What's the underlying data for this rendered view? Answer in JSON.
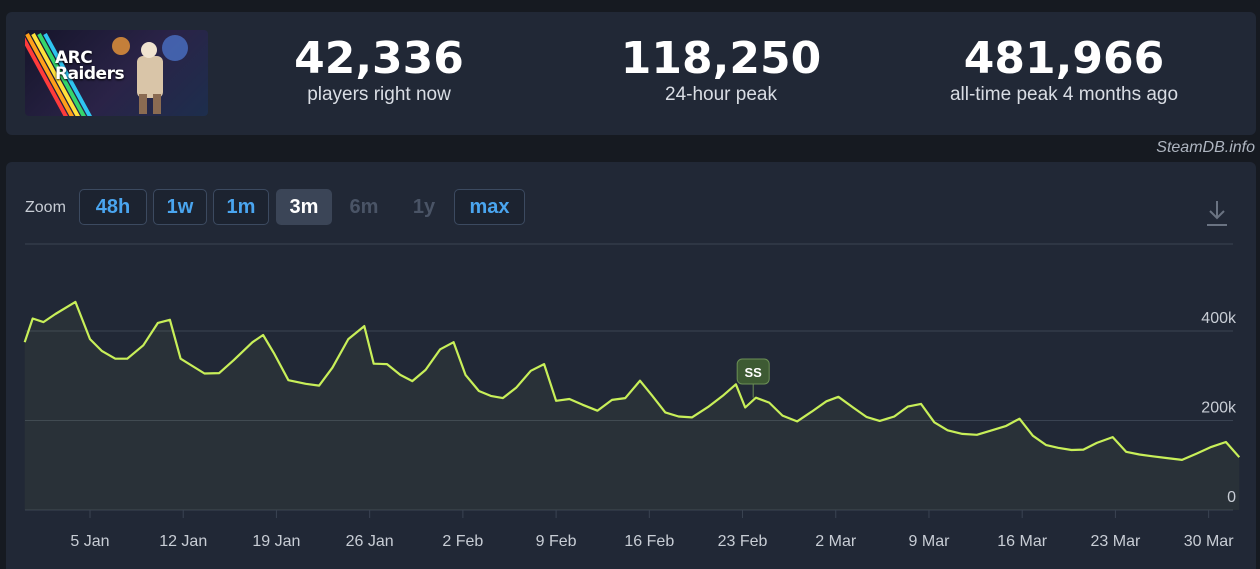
{
  "header": {
    "game_logo": "ARC\nRaiders",
    "stats": [
      {
        "value": "42,336",
        "label": "players right now"
      },
      {
        "value": "118,250",
        "label": "24-hour peak"
      },
      {
        "value": "481,966",
        "label": "all-time peak 4 months ago"
      }
    ],
    "credit": "SteamDB.info"
  },
  "zoom": {
    "label": "Zoom",
    "options": [
      {
        "label": "48h",
        "state": "enabled"
      },
      {
        "label": "1w",
        "state": "enabled"
      },
      {
        "label": "1m",
        "state": "enabled"
      },
      {
        "label": "3m",
        "state": "active"
      },
      {
        "label": "6m",
        "state": "disabled"
      },
      {
        "label": "1y",
        "state": "disabled"
      },
      {
        "label": "max",
        "state": "enabled"
      }
    ]
  },
  "icons": {
    "download": "download-icon"
  },
  "colors": {
    "line": "#c8ef59",
    "grid": "#3a4352",
    "axis_text": "#c8cdd5",
    "annotation_bg": "#3d5a33",
    "annotation_border": "#6b8f55"
  },
  "chart_data": {
    "type": "line",
    "title": "",
    "xlabel": "",
    "ylabel": "",
    "x_ticks": [
      "5 Jan",
      "12 Jan",
      "19 Jan",
      "26 Jan",
      "2 Feb",
      "9 Feb",
      "16 Feb",
      "23 Feb",
      "2 Mar",
      "9 Mar",
      "16 Mar",
      "23 Mar",
      "30 Mar"
    ],
    "x_tick_offsets_days": [
      0,
      7,
      14,
      21,
      28,
      35,
      42,
      49,
      56,
      63,
      70,
      77,
      84
    ],
    "y_ticks": [
      "0",
      "200k",
      "400k"
    ],
    "y_tick_values": [
      0,
      200000,
      400000
    ],
    "ylim": [
      0,
      600000
    ],
    "grid": true,
    "series": [
      {
        "points": [
          [
            -4.9,
            375000
          ],
          [
            -4.3,
            428000
          ],
          [
            -3.5,
            420000
          ],
          [
            -2.6,
            438000
          ],
          [
            -1.1,
            465000
          ],
          [
            0.0,
            382000
          ],
          [
            0.9,
            355000
          ],
          [
            1.9,
            338000
          ],
          [
            2.8,
            338000
          ],
          [
            4.0,
            368000
          ],
          [
            5.1,
            418000
          ],
          [
            6.0,
            425000
          ],
          [
            6.8,
            338000
          ],
          [
            8.6,
            305000
          ],
          [
            9.7,
            306000
          ],
          [
            10.8,
            335000
          ],
          [
            12.2,
            375000
          ],
          [
            13.0,
            391000
          ],
          [
            13.8,
            351000
          ],
          [
            14.9,
            290000
          ],
          [
            16.2,
            282000
          ],
          [
            17.2,
            278000
          ],
          [
            18.2,
            318000
          ],
          [
            19.4,
            382000
          ],
          [
            20.6,
            411000
          ],
          [
            21.3,
            327000
          ],
          [
            22.3,
            326000
          ],
          [
            23.3,
            302000
          ],
          [
            24.2,
            288000
          ],
          [
            25.2,
            313000
          ],
          [
            26.3,
            359000
          ],
          [
            27.3,
            375000
          ],
          [
            28.2,
            302000
          ],
          [
            29.2,
            266000
          ],
          [
            30.1,
            255000
          ],
          [
            31.0,
            250000
          ],
          [
            32.0,
            273000
          ],
          [
            33.1,
            311000
          ],
          [
            34.1,
            326000
          ],
          [
            35.0,
            244000
          ],
          [
            36.0,
            248000
          ],
          [
            37.0,
            235000
          ],
          [
            38.1,
            222000
          ],
          [
            39.2,
            246000
          ],
          [
            40.2,
            250000
          ],
          [
            41.3,
            289000
          ],
          [
            42.2,
            256000
          ],
          [
            43.2,
            218000
          ],
          [
            44.2,
            209000
          ],
          [
            45.2,
            207000
          ],
          [
            46.4,
            230000
          ],
          [
            47.5,
            255000
          ],
          [
            48.5,
            281000
          ],
          [
            49.2,
            229000
          ],
          [
            50.0,
            251000
          ],
          [
            51.0,
            240000
          ],
          [
            52.0,
            211000
          ],
          [
            53.1,
            198000
          ],
          [
            54.2,
            220000
          ],
          [
            55.3,
            243000
          ],
          [
            56.2,
            253000
          ],
          [
            57.3,
            229000
          ],
          [
            58.3,
            208000
          ],
          [
            59.3,
            199000
          ],
          [
            60.4,
            209000
          ],
          [
            61.4,
            231000
          ],
          [
            62.4,
            237000
          ],
          [
            63.4,
            196000
          ],
          [
            64.4,
            178000
          ],
          [
            65.5,
            170000
          ],
          [
            66.6,
            168000
          ],
          [
            67.6,
            177000
          ],
          [
            68.8,
            188000
          ],
          [
            69.8,
            204000
          ],
          [
            70.8,
            166000
          ],
          [
            71.8,
            145000
          ],
          [
            72.7,
            139000
          ],
          [
            73.7,
            134000
          ],
          [
            74.6,
            135000
          ],
          [
            75.6,
            150000
          ],
          [
            76.8,
            163000
          ],
          [
            77.8,
            130000
          ],
          [
            78.8,
            124000
          ],
          [
            79.8,
            120000
          ],
          [
            80.9,
            116000
          ],
          [
            82.0,
            112000
          ],
          [
            83.1,
            126000
          ],
          [
            84.2,
            141000
          ],
          [
            85.3,
            152000
          ],
          [
            86.3,
            118000
          ]
        ]
      }
    ],
    "annotations": [
      {
        "label": "SS",
        "x_offset_days": 49.8
      }
    ]
  }
}
